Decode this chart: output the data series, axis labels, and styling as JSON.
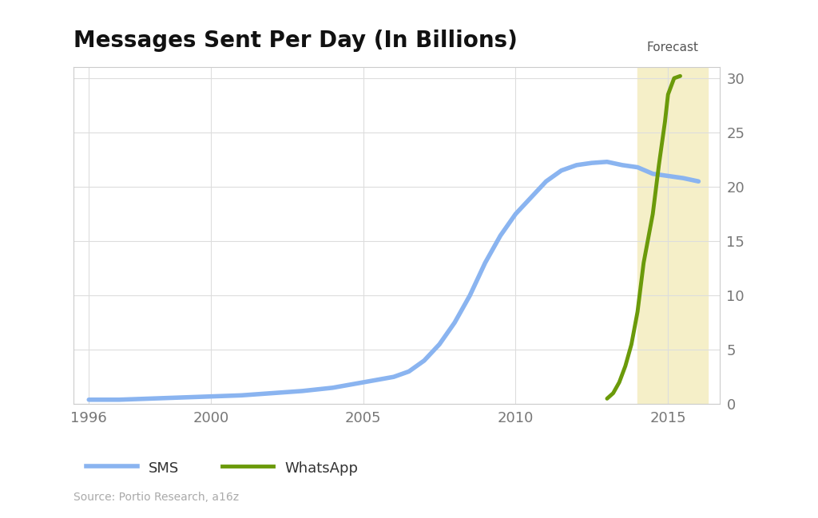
{
  "title": "Messages Sent Per Day (In Billions)",
  "source_text": "Source: Portio Research, a16z",
  "forecast_label": "Forecast",
  "forecast_start": 2014.0,
  "forecast_end": 2016.3,
  "background_color": "#ffffff",
  "plot_bg_color": "#ffffff",
  "forecast_bg_color": "#f5efc8",
  "grid_color": "#dddddd",
  "frame_color": "#cccccc",
  "sms_color": "#8ab4f0",
  "whatsapp_color": "#6b9a0a",
  "ylim": [
    0,
    31
  ],
  "yticks": [
    0,
    5,
    10,
    15,
    20,
    25,
    30
  ],
  "xlim": [
    1995.5,
    2016.7
  ],
  "xticks": [
    1996,
    2000,
    2005,
    2010,
    2015
  ],
  "sms_x": [
    1996,
    1997,
    1998,
    1999,
    2000,
    2001,
    2002,
    2003,
    2004,
    2005,
    2006,
    2006.5,
    2007,
    2007.5,
    2008,
    2008.5,
    2009,
    2009.5,
    2010,
    2010.5,
    2011,
    2011.5,
    2012,
    2012.5,
    2013,
    2013.5,
    2014,
    2014.5,
    2015,
    2015.5,
    2016
  ],
  "sms_y": [
    0.4,
    0.4,
    0.5,
    0.6,
    0.7,
    0.8,
    1.0,
    1.2,
    1.5,
    2.0,
    2.5,
    3.0,
    4.0,
    5.5,
    7.5,
    10.0,
    13.0,
    15.5,
    17.5,
    19.0,
    20.5,
    21.5,
    22.0,
    22.2,
    22.3,
    22.0,
    21.8,
    21.2,
    21.0,
    20.8,
    20.5
  ],
  "whatsapp_x": [
    2013.0,
    2013.2,
    2013.4,
    2013.6,
    2013.8,
    2014.0,
    2014.2,
    2014.5,
    2014.7,
    2014.9,
    2015.0,
    2015.2,
    2015.4
  ],
  "whatsapp_y": [
    0.5,
    1.0,
    2.0,
    3.5,
    5.5,
    8.5,
    13.0,
    17.5,
    22.0,
    26.0,
    28.5,
    30.0,
    30.2
  ],
  "sms_linewidth": 4,
  "whatsapp_linewidth": 3.5,
  "legend_sms_label": "SMS",
  "legend_whatsapp_label": "WhatsApp",
  "title_fontsize": 20,
  "tick_fontsize": 13,
  "legend_fontsize": 13,
  "source_fontsize": 10
}
